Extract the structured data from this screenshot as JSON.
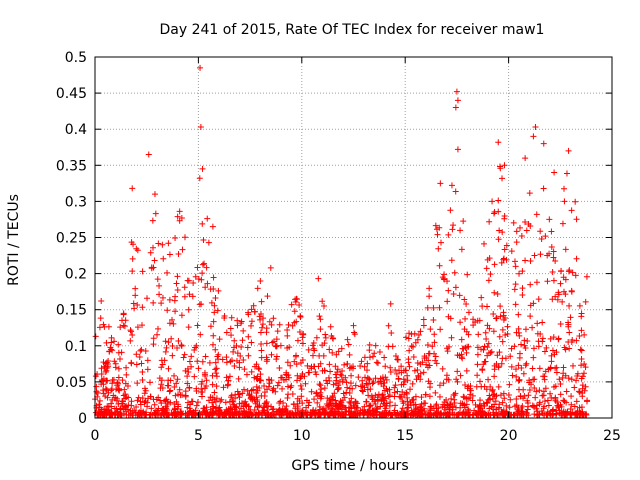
{
  "chart_data": {
    "type": "scatter",
    "title": "Day 241 of 2015, Rate Of TEC Index for receiver maw1",
    "xlabel": "GPS time / hours",
    "ylabel": "ROTI / TECUs",
    "xlim": [
      0,
      25
    ],
    "ylim": [
      0,
      0.5
    ],
    "xticks": [
      "0",
      "5",
      "10",
      "15",
      "20",
      "25"
    ],
    "yticks": [
      "0",
      "0.05",
      "0.1",
      "0.15",
      "0.2",
      "0.25",
      "0.3",
      "0.35",
      "0.4",
      "0.45",
      "0.5"
    ],
    "grid": true,
    "marker": "+",
    "color": "#ff0000",
    "envelope": {
      "x": [
        0,
        0.3,
        0.6,
        1.0,
        1.5,
        1.8,
        2.2,
        2.6,
        3.0,
        3.5,
        4.0,
        4.3,
        4.8,
        5.1,
        5.5,
        6.0,
        6.5,
        7.0,
        7.5,
        8.0,
        8.5,
        9.0,
        9.5,
        10.0,
        10.5,
        11.0,
        11.5,
        12.0,
        12.5,
        13.0,
        13.5,
        14.0,
        14.3,
        14.7,
        15.0,
        15.5,
        16.0,
        16.5,
        17.0,
        17.5,
        18.0,
        18.5,
        19.0,
        19.5,
        20.0,
        20.5,
        21.0,
        21.5,
        22.0,
        22.5,
        23.0,
        23.4,
        23.8
      ],
      "y": [
        0.12,
        0.16,
        0.13,
        0.11,
        0.17,
        0.3,
        0.2,
        0.34,
        0.29,
        0.24,
        0.28,
        0.3,
        0.22,
        0.35,
        0.26,
        0.17,
        0.15,
        0.13,
        0.15,
        0.19,
        0.16,
        0.15,
        0.17,
        0.16,
        0.12,
        0.19,
        0.11,
        0.1,
        0.12,
        0.09,
        0.11,
        0.09,
        0.16,
        0.1,
        0.11,
        0.13,
        0.16,
        0.3,
        0.27,
        0.37,
        0.24,
        0.21,
        0.26,
        0.36,
        0.29,
        0.25,
        0.38,
        0.38,
        0.31,
        0.3,
        0.36,
        0.25,
        0.21
      ]
    },
    "points": [
      {
        "x": 5.08,
        "y": 0.485
      },
      {
        "x": 5.12,
        "y": 0.403
      },
      {
        "x": 17.5,
        "y": 0.452
      },
      {
        "x": 17.55,
        "y": 0.44
      },
      {
        "x": 17.45,
        "y": 0.43
      },
      {
        "x": 21.3,
        "y": 0.403
      },
      {
        "x": 21.2,
        "y": 0.39
      },
      {
        "x": 19.5,
        "y": 0.382
      },
      {
        "x": 21.7,
        "y": 0.38
      },
      {
        "x": 22.9,
        "y": 0.37
      },
      {
        "x": 17.55,
        "y": 0.372
      },
      {
        "x": 2.6,
        "y": 0.365
      },
      {
        "x": 20.8,
        "y": 0.36
      },
      {
        "x": 19.8,
        "y": 0.35
      },
      {
        "x": 5.2,
        "y": 0.345
      },
      {
        "x": 22.2,
        "y": 0.34
      },
      {
        "x": 16.7,
        "y": 0.325
      },
      {
        "x": 1.8,
        "y": 0.318
      },
      {
        "x": 2.9,
        "y": 0.31
      },
      {
        "x": 22.7,
        "y": 0.3
      },
      {
        "x": 19.2,
        "y": 0.3
      },
      {
        "x": 4.2,
        "y": 0.277
      },
      {
        "x": 5.7,
        "y": 0.265
      },
      {
        "x": 8.5,
        "y": 0.208
      },
      {
        "x": 10.8,
        "y": 0.193
      },
      {
        "x": 14.3,
        "y": 0.158
      },
      {
        "x": 12.5,
        "y": 0.128
      },
      {
        "x": 0.3,
        "y": 0.162
      }
    ],
    "seed": 241
  }
}
